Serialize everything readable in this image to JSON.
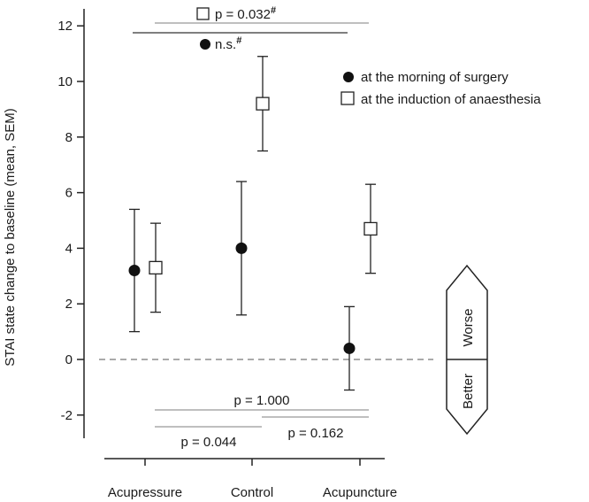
{
  "chart_data": {
    "type": "scatter",
    "ylabel": "STAI state change to baseline (mean, SEM)",
    "ylim": [
      -3,
      12.8
    ],
    "yticks": [
      -2,
      0,
      2,
      4,
      6,
      8,
      10,
      12
    ],
    "categories": [
      "Acupressure",
      "Control",
      "Acupuncture"
    ],
    "series": [
      {
        "name": "at the morning of surgery",
        "marker": "filled-circle",
        "color": "#000000",
        "points": [
          {
            "category": "Acupressure",
            "y": 3.2,
            "err_low": 1.0,
            "err_high": 5.4
          },
          {
            "category": "Control",
            "y": 4.0,
            "err_low": 1.6,
            "err_high": 6.4
          },
          {
            "category": "Acupuncture",
            "y": 0.4,
            "err_low": -1.1,
            "err_high": 1.9
          }
        ]
      },
      {
        "name": "at the induction of anaesthesia",
        "marker": "open-square",
        "color": "#000000",
        "points": [
          {
            "category": "Acupressure",
            "y": 3.3,
            "err_low": 1.7,
            "err_high": 4.9
          },
          {
            "category": "Control",
            "y": 9.2,
            "err_low": 7.5,
            "err_high": 10.9
          },
          {
            "category": "Acupuncture",
            "y": 4.7,
            "err_low": 3.1,
            "err_high": 6.3
          }
        ]
      }
    ],
    "annotations": {
      "top_square_p": "p = 0.032",
      "top_square_sup": "#",
      "top_circle_ns": "n.s.",
      "top_circle_sup": "#",
      "p_1000": "p = 1.000",
      "p_0044": "p = 0.044",
      "p_0162": "p = 0.162"
    },
    "direction_labels": {
      "worse": "Worse",
      "better": "Better"
    },
    "baseline_dashed": true,
    "legend_position": "top-right"
  }
}
